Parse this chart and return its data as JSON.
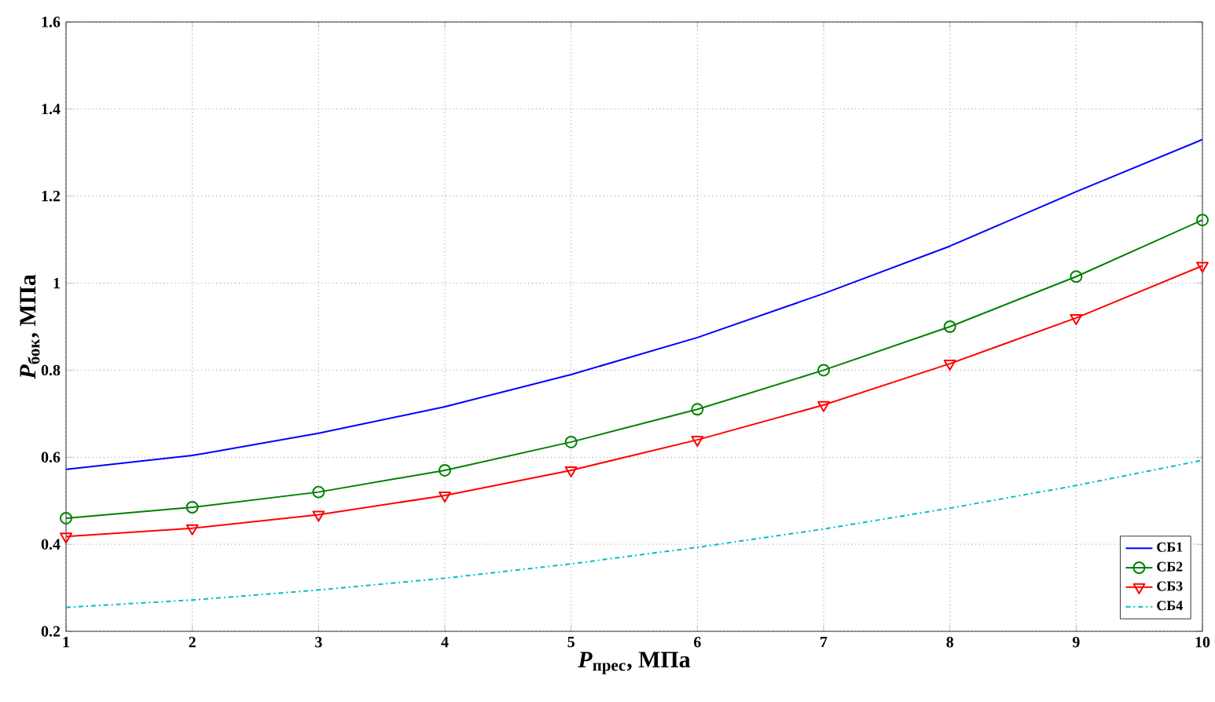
{
  "chart_data": {
    "type": "line",
    "xlabel": "*P*$_{прес}$, МПа",
    "ylabel": "*P*$_{бок}$, МПа",
    "x": [
      1,
      2,
      3,
      4,
      5,
      6,
      7,
      8,
      9,
      10
    ],
    "series": [
      {
        "name": "СБ1",
        "color": "#0000ff",
        "marker": "none",
        "line_style": "solid",
        "values": [
          0.572,
          0.604,
          0.655,
          0.716,
          0.79,
          0.875,
          0.976,
          1.085,
          1.21,
          1.33
        ]
      },
      {
        "name": "СБ2",
        "color": "#008000",
        "marker": "circle",
        "line_style": "solid",
        "values": [
          0.46,
          0.485,
          0.52,
          0.57,
          0.635,
          0.71,
          0.8,
          0.9,
          1.015,
          1.145
        ]
      },
      {
        "name": "СБ3",
        "color": "#ff0000",
        "marker": "triangle",
        "line_style": "solid",
        "values": [
          0.418,
          0.437,
          0.468,
          0.512,
          0.57,
          0.64,
          0.72,
          0.815,
          0.92,
          1.04
        ]
      },
      {
        "name": "СБ4",
        "color": "#00bfbf",
        "marker": "none",
        "line_style": "dashdot",
        "values": [
          0.255,
          0.272,
          0.295,
          0.322,
          0.355,
          0.393,
          0.435,
          0.483,
          0.535,
          0.593
        ]
      }
    ],
    "xlim": [
      1,
      10
    ],
    "ylim": [
      0.2,
      1.6
    ],
    "xticks": [
      1,
      2,
      3,
      4,
      5,
      6,
      7,
      8,
      9,
      10
    ],
    "yticks": [
      0.2,
      0.4,
      0.6,
      0.8,
      1,
      1.2,
      1.4,
      1.6
    ],
    "grid": true,
    "legend": "bottom right"
  }
}
